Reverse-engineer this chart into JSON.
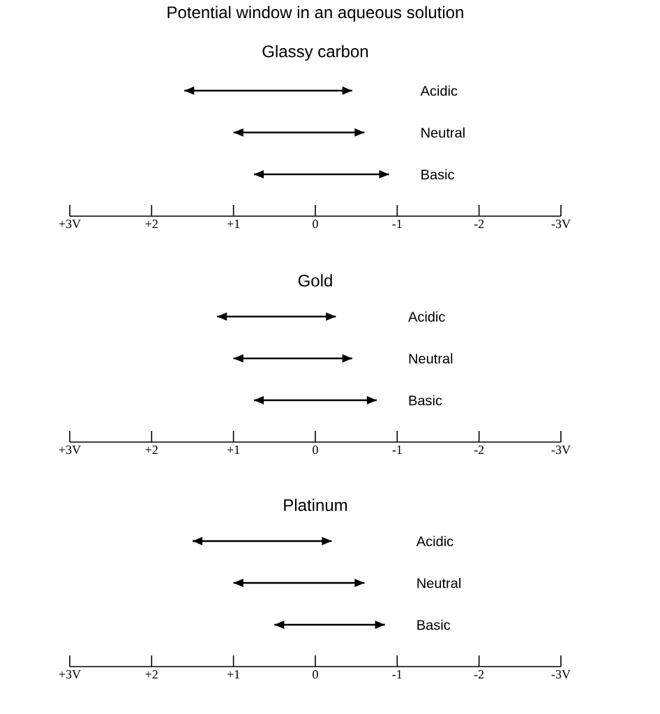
{
  "chart_data": [
    {
      "type": "bar",
      "orientation": "horizontal",
      "title": "Potential window in an aqueous solution",
      "subtitle": "Glassy carbon",
      "categories": [
        "Acidic",
        "Neutral",
        "Basic"
      ],
      "base": [
        1.6,
        1.0,
        0.75
      ],
      "values": [
        -2.05,
        -1.6,
        -1.65
      ],
      "color": "#000000",
      "xlim": [
        3,
        -3
      ],
      "xticks": [
        {
          "value": 3,
          "label": "+3V"
        },
        {
          "value": 2,
          "label": "+2"
        },
        {
          "value": 1,
          "label": "+1"
        },
        {
          "value": 0,
          "label": "0"
        },
        {
          "value": -1,
          "label": "-1"
        },
        {
          "value": -2,
          "label": "-2"
        },
        {
          "value": -3,
          "label": "-3V"
        }
      ]
    },
    {
      "type": "bar",
      "orientation": "horizontal",
      "title": "Gold",
      "categories": [
        "Acidic",
        "Neutral",
        "Basic"
      ],
      "base": [
        1.2,
        1.0,
        0.75
      ],
      "values": [
        -1.45,
        -1.45,
        -1.5
      ],
      "color": "#000000",
      "xlim": [
        3,
        -3
      ],
      "xticks": [
        {
          "value": 3,
          "label": "+3V"
        },
        {
          "value": 2,
          "label": "+2"
        },
        {
          "value": 1,
          "label": "+1"
        },
        {
          "value": 0,
          "label": "0"
        },
        {
          "value": -1,
          "label": "-1"
        },
        {
          "value": -2,
          "label": "-2"
        },
        {
          "value": -3,
          "label": "-3V"
        }
      ]
    },
    {
      "type": "bar",
      "orientation": "horizontal",
      "title": "Platinum",
      "categories": [
        "Acidic",
        "Neutral",
        "Basic"
      ],
      "base": [
        1.5,
        1.0,
        0.5
      ],
      "values": [
        -1.7,
        -1.6,
        -1.35
      ],
      "color": "#000000",
      "xlim": [
        3,
        -3
      ],
      "xticks": [
        {
          "value": 3,
          "label": "+3V"
        },
        {
          "value": 2,
          "label": "+2"
        },
        {
          "value": 1,
          "label": "+1"
        },
        {
          "value": 0,
          "label": "0"
        },
        {
          "value": -1,
          "label": "-1"
        },
        {
          "value": -2,
          "label": "-2"
        },
        {
          "value": -3,
          "label": "-3V"
        }
      ]
    }
  ]
}
